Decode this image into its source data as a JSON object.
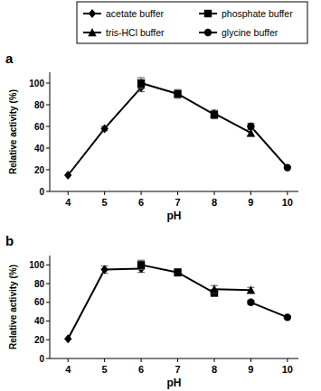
{
  "chart_data": [
    {
      "type": "line",
      "title": "a",
      "x_label": "pH",
      "y_label": "Relative activity (%)",
      "x": [
        4,
        5,
        6,
        7,
        8,
        9,
        10
      ],
      "xlim": [
        3.5,
        10.3
      ],
      "xticks": [
        4,
        5,
        6,
        7,
        8,
        9,
        10
      ],
      "ylim": [
        0,
        110
      ],
      "yticks": [
        0,
        20,
        40,
        60,
        80,
        100
      ],
      "grid": false,
      "legend": "top",
      "series": [
        {
          "name": "acetate buffer",
          "color": "#000000",
          "marker": "diamond",
          "line_style": "solid",
          "values": [
            15,
            58,
            96,
            null,
            null,
            null,
            null
          ],
          "errors": [
            null,
            2,
            4,
            null,
            null,
            null,
            null
          ]
        },
        {
          "name": "phosphate buffer",
          "color": "#000000",
          "marker": "square",
          "line_style": "solid",
          "values": [
            null,
            null,
            100,
            90,
            71,
            null,
            null
          ],
          "errors": [
            null,
            null,
            5,
            4,
            4,
            null,
            null
          ]
        },
        {
          "name": "tris-HCl buffer",
          "color": "#000000",
          "marker": "triangle",
          "line_style": "solid",
          "values": [
            null,
            null,
            null,
            null,
            72,
            54,
            null
          ],
          "errors": [
            null,
            null,
            null,
            null,
            null,
            3,
            null
          ]
        },
        {
          "name": "glycine buffer",
          "color": "#000000",
          "marker": "circle",
          "line_style": "solid",
          "values": [
            null,
            null,
            null,
            null,
            null,
            60,
            22
          ],
          "errors": [
            null,
            null,
            null,
            null,
            null,
            3,
            null
          ]
        }
      ]
    },
    {
      "type": "line",
      "title": "b",
      "x_label": "pH",
      "y_label": "Relative activity (%)",
      "x": [
        4,
        5,
        6,
        7,
        8,
        9,
        10
      ],
      "xlim": [
        3.5,
        10.3
      ],
      "xticks": [
        4,
        5,
        6,
        7,
        8,
        9,
        10
      ],
      "ylim": [
        0,
        110
      ],
      "yticks": [
        0,
        20,
        40,
        60,
        80,
        100
      ],
      "grid": false,
      "series": [
        {
          "name": "acetate buffer",
          "color": "#000000",
          "marker": "diamond",
          "line_style": "solid",
          "values": [
            21,
            95,
            96,
            null,
            null,
            null,
            null
          ],
          "errors": [
            null,
            4,
            4,
            null,
            null,
            null,
            null
          ]
        },
        {
          "name": "phosphate buffer",
          "color": "#000000",
          "marker": "square",
          "line_style": "solid",
          "values": [
            null,
            null,
            100,
            92,
            70,
            null,
            null
          ],
          "errors": [
            null,
            null,
            5,
            4,
            3,
            null,
            null
          ]
        },
        {
          "name": "tris-HCl buffer",
          "color": "#000000",
          "marker": "triangle",
          "line_style": "solid",
          "values": [
            null,
            null,
            null,
            null,
            74,
            73,
            null
          ],
          "errors": [
            null,
            null,
            null,
            null,
            4,
            3,
            null
          ]
        },
        {
          "name": "glycine buffer",
          "color": "#000000",
          "marker": "circle",
          "line_style": "solid",
          "values": [
            null,
            null,
            null,
            null,
            null,
            60,
            44
          ],
          "errors": [
            null,
            null,
            null,
            null,
            null,
            2,
            null
          ]
        }
      ]
    }
  ]
}
